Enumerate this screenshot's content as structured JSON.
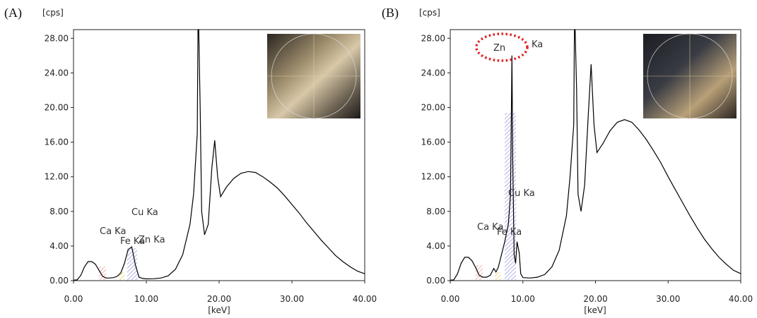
{
  "chart_data": [
    {
      "panel": "(A)",
      "type": "line",
      "xlabel": "[keV]",
      "ylabel": "[cps]",
      "xlim": [
        0,
        40
      ],
      "ylim": [
        0,
        29
      ],
      "x_ticks": [
        "0.00",
        "10.00",
        "20.00",
        "30.00",
        "40.00"
      ],
      "y_ticks": [
        "0.00",
        "4.00",
        "8.00",
        "12.00",
        "16.00",
        "20.00",
        "24.00",
        "28.00"
      ],
      "grid": false,
      "series": [
        {
          "x": [
            0,
            0.5,
            1,
            1.5,
            2,
            2.5,
            3,
            3.5,
            4,
            4.5,
            5,
            5.5,
            6,
            6.5,
            7,
            7.5,
            8,
            8.5,
            9,
            9.5,
            10,
            11,
            12,
            13,
            14,
            15,
            16,
            16.5,
            17,
            17.1,
            17.2,
            17.4,
            17.6,
            18,
            18.5,
            19,
            19.4,
            19.8,
            20.2,
            21,
            22,
            23,
            24,
            25,
            26,
            27,
            28,
            29,
            30,
            31,
            32,
            33,
            34,
            35,
            36,
            37,
            38,
            39,
            40
          ],
          "y": [
            0.05,
            0.1,
            0.6,
            1.6,
            2.2,
            2.2,
            1.9,
            1.2,
            0.5,
            0.3,
            0.3,
            0.35,
            0.5,
            0.9,
            2.0,
            3.6,
            3.9,
            1.8,
            0.4,
            0.25,
            0.2,
            0.22,
            0.3,
            0.55,
            1.3,
            3.0,
            6.5,
            10.0,
            17.0,
            29.0,
            29.0,
            20.0,
            8.0,
            5.3,
            6.5,
            13.0,
            16.2,
            12.0,
            9.7,
            10.8,
            11.8,
            12.4,
            12.6,
            12.5,
            12.0,
            11.4,
            10.7,
            9.8,
            8.8,
            7.8,
            6.7,
            5.7,
            4.7,
            3.8,
            2.9,
            2.2,
            1.6,
            1.1,
            0.8
          ]
        }
      ],
      "annotations": [
        "Ca Ka",
        "Fe Ka",
        "Zn Ka",
        "Cu Ka"
      ]
    },
    {
      "panel": "(B)",
      "type": "line",
      "xlabel": "[keV]",
      "ylabel": "[cps]",
      "xlim": [
        0,
        40
      ],
      "ylim": [
        0,
        29
      ],
      "x_ticks": [
        "0.00",
        "10.00",
        "20.00",
        "30.00",
        "40.00"
      ],
      "y_ticks": [
        "0.00",
        "4.00",
        "8.00",
        "12.00",
        "16.00",
        "20.00",
        "24.00",
        "28.00"
      ],
      "grid": false,
      "series": [
        {
          "x": [
            0,
            0.5,
            1,
            1.5,
            2,
            2.5,
            3,
            3.5,
            4,
            4.5,
            5,
            5.5,
            6,
            6.3,
            6.6,
            7,
            7.5,
            8,
            8.3,
            8.5,
            8.6,
            8.8,
            9,
            9.2,
            9.5,
            9.7,
            10,
            11,
            12,
            13,
            14,
            15,
            16,
            16.5,
            17,
            17.1,
            17.2,
            17.4,
            17.6,
            18,
            18.5,
            19,
            19.4,
            19.8,
            20.2,
            21,
            22,
            23,
            24,
            25,
            26,
            27,
            28,
            29,
            30,
            31,
            32,
            33,
            34,
            35,
            36,
            37,
            38,
            39,
            40
          ],
          "y": [
            0.05,
            0.1,
            0.8,
            2.0,
            2.7,
            2.7,
            2.3,
            1.5,
            0.6,
            0.4,
            0.4,
            0.6,
            1.4,
            1.0,
            1.5,
            2.8,
            4.5,
            6.5,
            10.0,
            26.0,
            14.0,
            3.0,
            2.0,
            4.5,
            3.2,
            0.8,
            0.35,
            0.3,
            0.4,
            0.7,
            1.6,
            3.5,
            7.5,
            12.0,
            18.0,
            29.0,
            29.0,
            22.0,
            10.0,
            8.0,
            11.0,
            19.0,
            25.0,
            18.0,
            14.8,
            15.8,
            17.3,
            18.3,
            18.6,
            18.3,
            17.4,
            16.3,
            15.0,
            13.6,
            12.0,
            10.5,
            9.0,
            7.5,
            6.1,
            4.8,
            3.7,
            2.7,
            1.9,
            1.2,
            0.8
          ]
        }
      ],
      "annotations": [
        "Zn",
        "Ka",
        "Cu Ka",
        "Ca Ka",
        "Fe Ka"
      ]
    }
  ],
  "insets": [
    {
      "panel": "(A)",
      "image": "sample-photo-A"
    },
    {
      "panel": "(B)",
      "image": "sample-photo-B"
    }
  ]
}
